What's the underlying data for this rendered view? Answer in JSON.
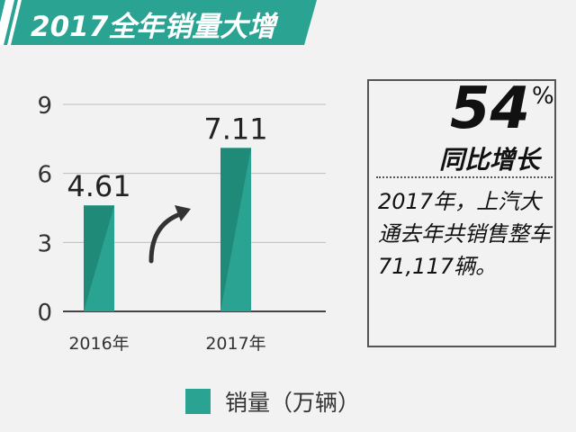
{
  "header": {
    "title": "2017全年销量大增"
  },
  "chart_data": {
    "type": "bar",
    "categories": [
      "2016年",
      "2017年"
    ],
    "series": [
      {
        "name": "销量（万辆）",
        "values": [
          4.61,
          7.11
        ]
      }
    ],
    "data_labels": [
      "4.61",
      "7.11"
    ],
    "yticks": [
      0,
      3,
      6,
      9
    ],
    "ylim": [
      0,
      9
    ],
    "grid": true,
    "legend_position": "bottom",
    "title": "",
    "xlabel": "",
    "ylabel": ""
  },
  "callout": {
    "big_number": "54",
    "percent_sign": "%",
    "subtitle": "同比增长",
    "note": "2017年，上汽大通去年共销售整车71,117辆。"
  },
  "legend": {
    "label": "销量（万辆）"
  },
  "colors": {
    "accent": "#2aa392",
    "bar_dark": "#1f8a78",
    "bar_light": "#2aa392"
  }
}
